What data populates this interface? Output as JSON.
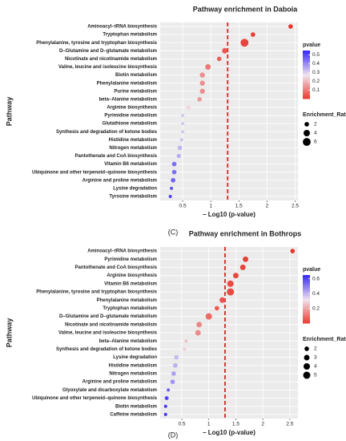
{
  "chart_data": [
    {
      "type": "scatter",
      "title": "Pathway enrichment in Daboia",
      "caption": "(C)",
      "xlabel": "– Log10 (p-value)",
      "ylabel": "Pathway",
      "categories": [
        "Aminoacyl–tRNA biosynthesis",
        "Tryptophan metabolism",
        "Phenylalanine, tyrosine and tryptophan biosynthesis",
        "D–Glutamine and D–glutamate metabolism",
        "Nicotinate and nicotinamide metabolism",
        "Valine, leucine and isoleucine biosynthesis",
        "Biotin metabolism",
        "Phenylalanine metabolism",
        "Purine metabolism",
        "beta–Alanine metabolism",
        "Arginine biosynthesis",
        "Pyrimidine metabolism",
        "Glutathione metabolism",
        "Synthesis and degradation of ketone bodies",
        "Histidine metabolism",
        "Nitrogen metabolism",
        "Pantothenate and CoA biosynthesis",
        "Vitamin B6 metabolism",
        "Ubiquinone and other terpenoid–quinone biosynthesis",
        "Arginine and proline metabolism",
        "Lysine degradation",
        "Tyrosine metabolism"
      ],
      "values": [
        2.42,
        1.75,
        1.6,
        1.25,
        1.15,
        0.95,
        0.85,
        0.85,
        0.85,
        0.8,
        0.6,
        0.5,
        0.5,
        0.5,
        0.48,
        0.45,
        0.43,
        0.35,
        0.35,
        0.33,
        0.3,
        0.28
      ],
      "pvalue": [
        0.004,
        0.018,
        0.025,
        0.056,
        0.07,
        0.11,
        0.14,
        0.14,
        0.14,
        0.16,
        0.25,
        0.32,
        0.32,
        0.32,
        0.33,
        0.35,
        0.37,
        0.45,
        0.45,
        0.47,
        0.5,
        0.52
      ],
      "ratio": [
        2,
        2,
        6,
        3,
        2,
        3,
        2.5,
        2.5,
        2.5,
        2,
        1.5,
        1,
        1,
        1,
        1,
        2,
        1.5,
        2,
        2,
        2,
        1,
        1
      ],
      "xlim": [
        0.1,
        2.55
      ],
      "xticks": [
        0.5,
        1.0,
        1.5,
        2.0,
        2.5
      ],
      "reference_line": {
        "x": 1.3,
        "color": "#d62728"
      },
      "color_legend_title": "pvalue",
      "clim": [
        0.004,
        0.55
      ],
      "cticks": [
        0.1,
        0.2,
        0.3,
        0.4,
        0.5
      ],
      "colors": [
        "#e8372c",
        "#f1e4ee",
        "#3a2cf5"
      ],
      "size_legend_title": "Enrichment_Ratio",
      "size_ticks": [
        2,
        4,
        6
      ],
      "grid": true
    },
    {
      "type": "scatter",
      "title": "Pathway enrichment in Bothrops",
      "caption": "(D)",
      "xlabel": "– Log10 (p-value)",
      "ylabel": "Pathway",
      "categories": [
        "Aminoacyl–tRNA biosynthesis",
        "Pyrimidine metabolism",
        "Pantothenate and CoA biosynthesis",
        "Arginine biosynthesis",
        "Vitamin B6 metabolism",
        "Phenylalanine, tyrosine and tryptophan biosynthesis",
        "Phenylalanine metabolism",
        "Tryptophan metabolism",
        "D–Glutamine and D–glutamate metabolism",
        "Nicotinate and nicotinamide metabolism",
        "Valine, leucine and isoleucine biosynthesis",
        "beta–Alanine metabolism",
        "Synthesis and degradation of ketone bodies",
        "Lysine degradation",
        "Histidine metabolism",
        "Nitrogen metabolism",
        "Arginine and proline metabolism",
        "Glyoxylate and dicarboxylate metabolism",
        "Ubiquinone and other terpenoid–quinone biosynthesis",
        "Biotin metabolism",
        "Caffeine metabolism"
      ],
      "values": [
        2.55,
        1.68,
        1.63,
        1.5,
        1.4,
        1.4,
        1.25,
        1.15,
        1.0,
        0.82,
        0.8,
        0.58,
        0.55,
        0.4,
        0.38,
        0.35,
        0.33,
        0.25,
        0.22,
        0.2,
        0.2
      ],
      "pvalue": [
        0.003,
        0.02,
        0.023,
        0.03,
        0.04,
        0.04,
        0.056,
        0.07,
        0.1,
        0.15,
        0.16,
        0.26,
        0.28,
        0.4,
        0.42,
        0.45,
        0.47,
        0.56,
        0.6,
        0.63,
        0.63
      ],
      "ratio": [
        2,
        3,
        3,
        3,
        4,
        5,
        3,
        2,
        4,
        3,
        3,
        1,
        1,
        2,
        2,
        2,
        2,
        1,
        1.5,
        1,
        1
      ],
      "xlim": [
        0.1,
        2.65
      ],
      "xticks": [
        0.5,
        1.0,
        1.5,
        2.0,
        2.5
      ],
      "reference_line": {
        "x": 1.3,
        "color": "#d62728"
      },
      "color_legend_title": "pvalue",
      "clim": [
        0.003,
        0.65
      ],
      "cticks": [
        0.2,
        0.4,
        0.6
      ],
      "colors": [
        "#e8372c",
        "#f1e4ee",
        "#3a2cf5"
      ],
      "size_legend_title": "Enrichment_Ratio",
      "size_ticks": [
        2,
        3,
        4,
        5
      ],
      "grid": true
    }
  ]
}
